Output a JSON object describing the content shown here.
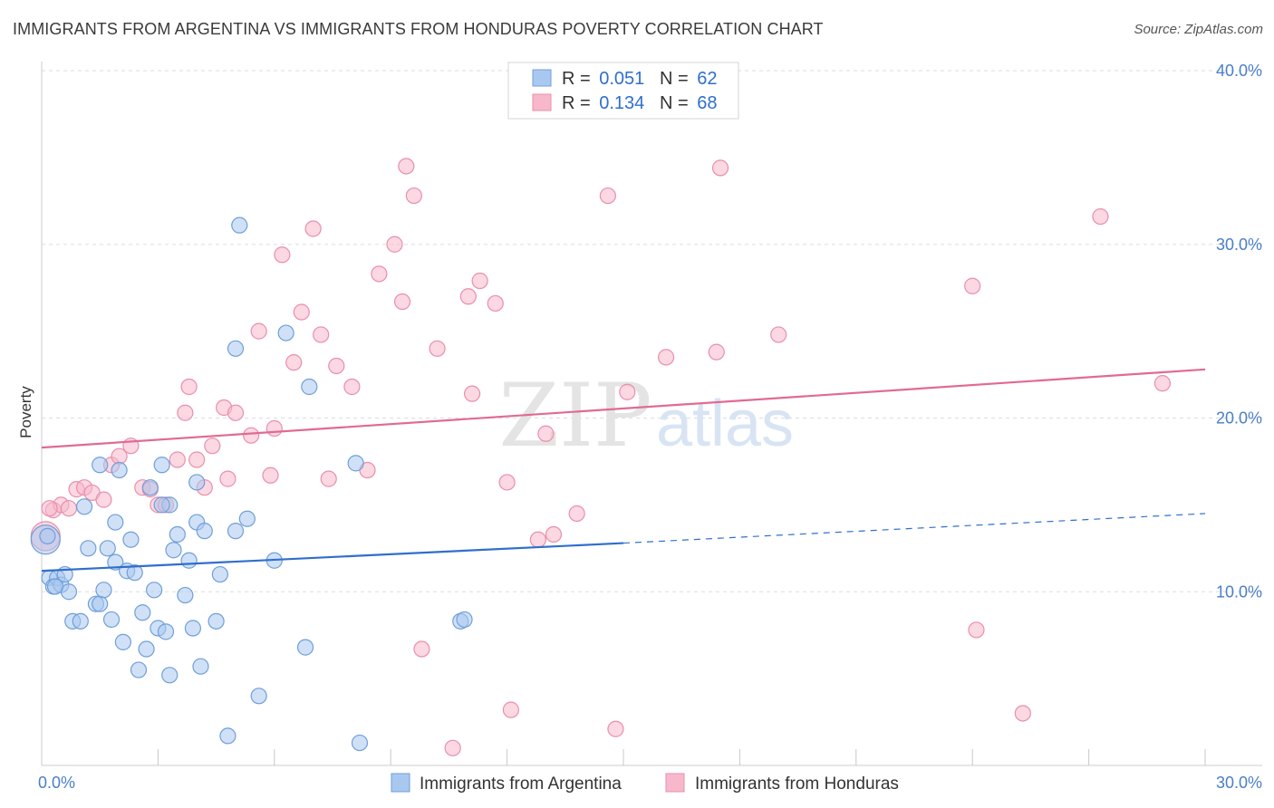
{
  "title": "IMMIGRANTS FROM ARGENTINA VS IMMIGRANTS FROM HONDURAS POVERTY CORRELATION CHART",
  "source": "Source: ZipAtlas.com",
  "watermark": {
    "zip": "ZIP",
    "atlas": "atlas"
  },
  "colors": {
    "argentina_fill": "#a9c8f0",
    "argentina_stroke": "#6f9fd8",
    "argentina_line": "#2f6fcc",
    "honduras_fill": "#f7b8cb",
    "honduras_stroke": "#e98fac",
    "honduras_line": "#e06b92",
    "tick": "#4a7fc8",
    "grid": "#dddddd"
  },
  "legend": {
    "rows": [
      {
        "r_label": "R = ",
        "r_value": "0.051",
        "n_label": "N = ",
        "n_value": "62"
      },
      {
        "r_label": "R = ",
        "r_value": "0.134",
        "n_label": "N = ",
        "n_value": "68"
      }
    ]
  },
  "chart_data": {
    "type": "scatter",
    "title": "IMMIGRANTS FROM ARGENTINA VS IMMIGRANTS FROM HONDURAS POVERTY CORRELATION CHART",
    "xlabel": "",
    "ylabel": "Poverty",
    "xlim": [
      0,
      30
    ],
    "ylim": [
      0,
      40
    ],
    "x_tick_labels": [
      "0.0%",
      "30.0%"
    ],
    "y_ticks": [
      10,
      20,
      30,
      40
    ],
    "y_tick_labels": [
      "10.0%",
      "20.0%",
      "30.0%",
      "40.0%"
    ],
    "grid": true,
    "legend_placement": "top-center",
    "series": [
      {
        "name": "Immigrants from Argentina",
        "trend": {
          "x0": 0,
          "y0": 11.2,
          "x1": 15,
          "y1": 12.8,
          "dashed_to_x": 30,
          "dashed_to_y": 14.5
        },
        "points": [
          [
            0.1,
            13.0
          ],
          [
            0.2,
            10.8
          ],
          [
            0.3,
            10.3
          ],
          [
            0.4,
            10.8
          ],
          [
            0.5,
            10.4
          ],
          [
            0.6,
            11.0
          ],
          [
            0.7,
            10.0
          ],
          [
            0.8,
            8.3
          ],
          [
            1.0,
            8.3
          ],
          [
            1.1,
            14.9
          ],
          [
            1.2,
            12.5
          ],
          [
            1.4,
            9.3
          ],
          [
            1.5,
            9.3
          ],
          [
            1.5,
            17.3
          ],
          [
            1.6,
            10.1
          ],
          [
            1.7,
            12.5
          ],
          [
            1.8,
            8.4
          ],
          [
            1.9,
            14.0
          ],
          [
            1.9,
            11.7
          ],
          [
            2.0,
            17.0
          ],
          [
            2.1,
            7.1
          ],
          [
            2.2,
            11.2
          ],
          [
            2.3,
            13.0
          ],
          [
            2.4,
            11.1
          ],
          [
            2.5,
            5.5
          ],
          [
            2.6,
            8.8
          ],
          [
            2.7,
            6.7
          ],
          [
            2.8,
            16.0
          ],
          [
            2.9,
            10.1
          ],
          [
            3.0,
            7.9
          ],
          [
            3.1,
            17.3
          ],
          [
            3.2,
            7.7
          ],
          [
            3.3,
            15.0
          ],
          [
            3.3,
            5.2
          ],
          [
            3.4,
            12.4
          ],
          [
            3.5,
            13.3
          ],
          [
            3.7,
            9.8
          ],
          [
            3.8,
            11.8
          ],
          [
            3.9,
            7.9
          ],
          [
            4.0,
            16.3
          ],
          [
            4.0,
            14.0
          ],
          [
            4.1,
            5.7
          ],
          [
            4.2,
            13.5
          ],
          [
            4.5,
            8.3
          ],
          [
            4.6,
            11.0
          ],
          [
            4.8,
            1.7
          ],
          [
            5.0,
            24.0
          ],
          [
            5.0,
            13.5
          ],
          [
            5.1,
            31.1
          ],
          [
            5.3,
            14.2
          ],
          [
            5.6,
            4.0
          ],
          [
            6.0,
            11.8
          ],
          [
            6.3,
            24.9
          ],
          [
            6.8,
            6.8
          ],
          [
            6.9,
            21.8
          ],
          [
            8.1,
            17.4
          ],
          [
            8.2,
            1.3
          ],
          [
            10.8,
            8.3
          ],
          [
            10.9,
            8.4
          ],
          [
            0.15,
            13.2
          ],
          [
            0.35,
            10.3
          ],
          [
            3.1,
            15.0
          ]
        ]
      },
      {
        "name": "Immigrants from Honduras",
        "trend": {
          "x0": 0,
          "y0": 18.3,
          "x1": 30,
          "y1": 22.8
        },
        "points": [
          [
            0.1,
            13.2
          ],
          [
            0.3,
            14.7
          ],
          [
            0.5,
            15.0
          ],
          [
            0.7,
            14.8
          ],
          [
            0.9,
            15.9
          ],
          [
            1.1,
            16.0
          ],
          [
            1.3,
            15.7
          ],
          [
            1.6,
            15.3
          ],
          [
            1.8,
            17.3
          ],
          [
            2.0,
            17.8
          ],
          [
            2.3,
            18.4
          ],
          [
            2.6,
            16.0
          ],
          [
            2.8,
            15.9
          ],
          [
            3.0,
            15.0
          ],
          [
            3.2,
            15.0
          ],
          [
            3.5,
            17.6
          ],
          [
            3.7,
            20.3
          ],
          [
            3.8,
            21.8
          ],
          [
            4.0,
            17.6
          ],
          [
            4.2,
            16.0
          ],
          [
            4.4,
            18.4
          ],
          [
            4.7,
            20.6
          ],
          [
            4.8,
            16.5
          ],
          [
            5.0,
            20.3
          ],
          [
            5.4,
            19.0
          ],
          [
            5.6,
            25.0
          ],
          [
            5.9,
            16.7
          ],
          [
            6.0,
            19.4
          ],
          [
            6.2,
            29.4
          ],
          [
            6.5,
            23.2
          ],
          [
            6.7,
            26.1
          ],
          [
            7.0,
            30.9
          ],
          [
            7.2,
            24.8
          ],
          [
            7.4,
            16.5
          ],
          [
            7.6,
            23.0
          ],
          [
            8.0,
            21.8
          ],
          [
            8.4,
            17.0
          ],
          [
            8.7,
            28.3
          ],
          [
            9.1,
            30.0
          ],
          [
            9.3,
            26.7
          ],
          [
            9.4,
            34.5
          ],
          [
            9.6,
            32.8
          ],
          [
            9.8,
            6.7
          ],
          [
            10.2,
            24.0
          ],
          [
            10.6,
            1.0
          ],
          [
            11.0,
            27.0
          ],
          [
            11.1,
            21.4
          ],
          [
            11.3,
            27.9
          ],
          [
            11.7,
            26.6
          ],
          [
            12.0,
            16.3
          ],
          [
            12.1,
            3.2
          ],
          [
            12.8,
            13.0
          ],
          [
            13.0,
            19.1
          ],
          [
            13.2,
            13.3
          ],
          [
            13.8,
            14.5
          ],
          [
            14.6,
            32.8
          ],
          [
            14.8,
            2.1
          ],
          [
            15.1,
            21.5
          ],
          [
            16.1,
            23.5
          ],
          [
            17.4,
            23.8
          ],
          [
            17.5,
            34.4
          ],
          [
            19.0,
            24.8
          ],
          [
            24.0,
            27.6
          ],
          [
            24.1,
            7.8
          ],
          [
            25.3,
            3.0
          ],
          [
            27.3,
            31.6
          ],
          [
            28.9,
            22.0
          ],
          [
            0.2,
            14.8
          ]
        ]
      }
    ]
  },
  "bottom_legend": [
    {
      "label": "Immigrants from Argentina"
    },
    {
      "label": "Immigrants from Honduras"
    }
  ]
}
